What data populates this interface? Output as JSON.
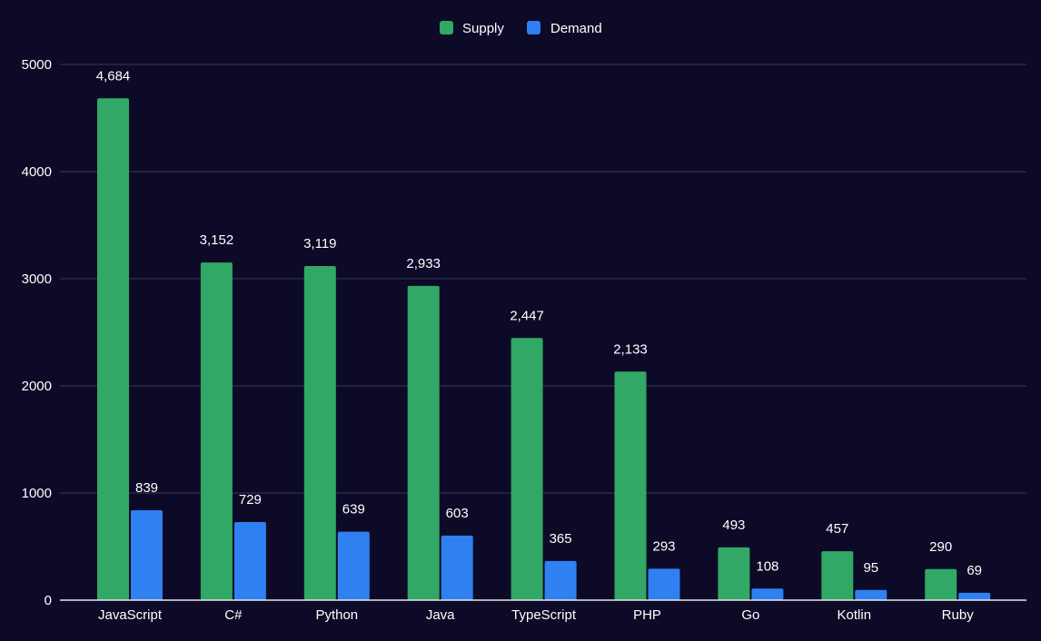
{
  "chart_data": {
    "type": "bar",
    "categories": [
      "JavaScript",
      "C#",
      "Python",
      "Java",
      "TypeScript",
      "PHP",
      "Go",
      "Kotlin",
      "Ruby"
    ],
    "series": [
      {
        "name": "Supply",
        "color": "#31a865",
        "values": [
          4684,
          3152,
          3119,
          2933,
          2447,
          2133,
          493,
          457,
          290
        ],
        "labels": [
          "4,684",
          "3,152",
          "3,119",
          "2,933",
          "2,447",
          "2,133",
          "493",
          "457",
          "290"
        ]
      },
      {
        "name": "Demand",
        "color": "#2f80f0",
        "values": [
          839,
          729,
          639,
          603,
          365,
          293,
          108,
          95,
          69
        ],
        "labels": [
          "839",
          "729",
          "639",
          "603",
          "365",
          "293",
          "108",
          "95",
          "69"
        ]
      }
    ],
    "title": "",
    "xlabel": "",
    "ylabel": "",
    "ylim": [
      0,
      5000
    ],
    "yticks": [
      "0",
      "1000",
      "2000",
      "3000",
      "4000",
      "5000"
    ],
    "grid": true,
    "legend_position": "top-center",
    "background_color": "#0c0a26"
  }
}
